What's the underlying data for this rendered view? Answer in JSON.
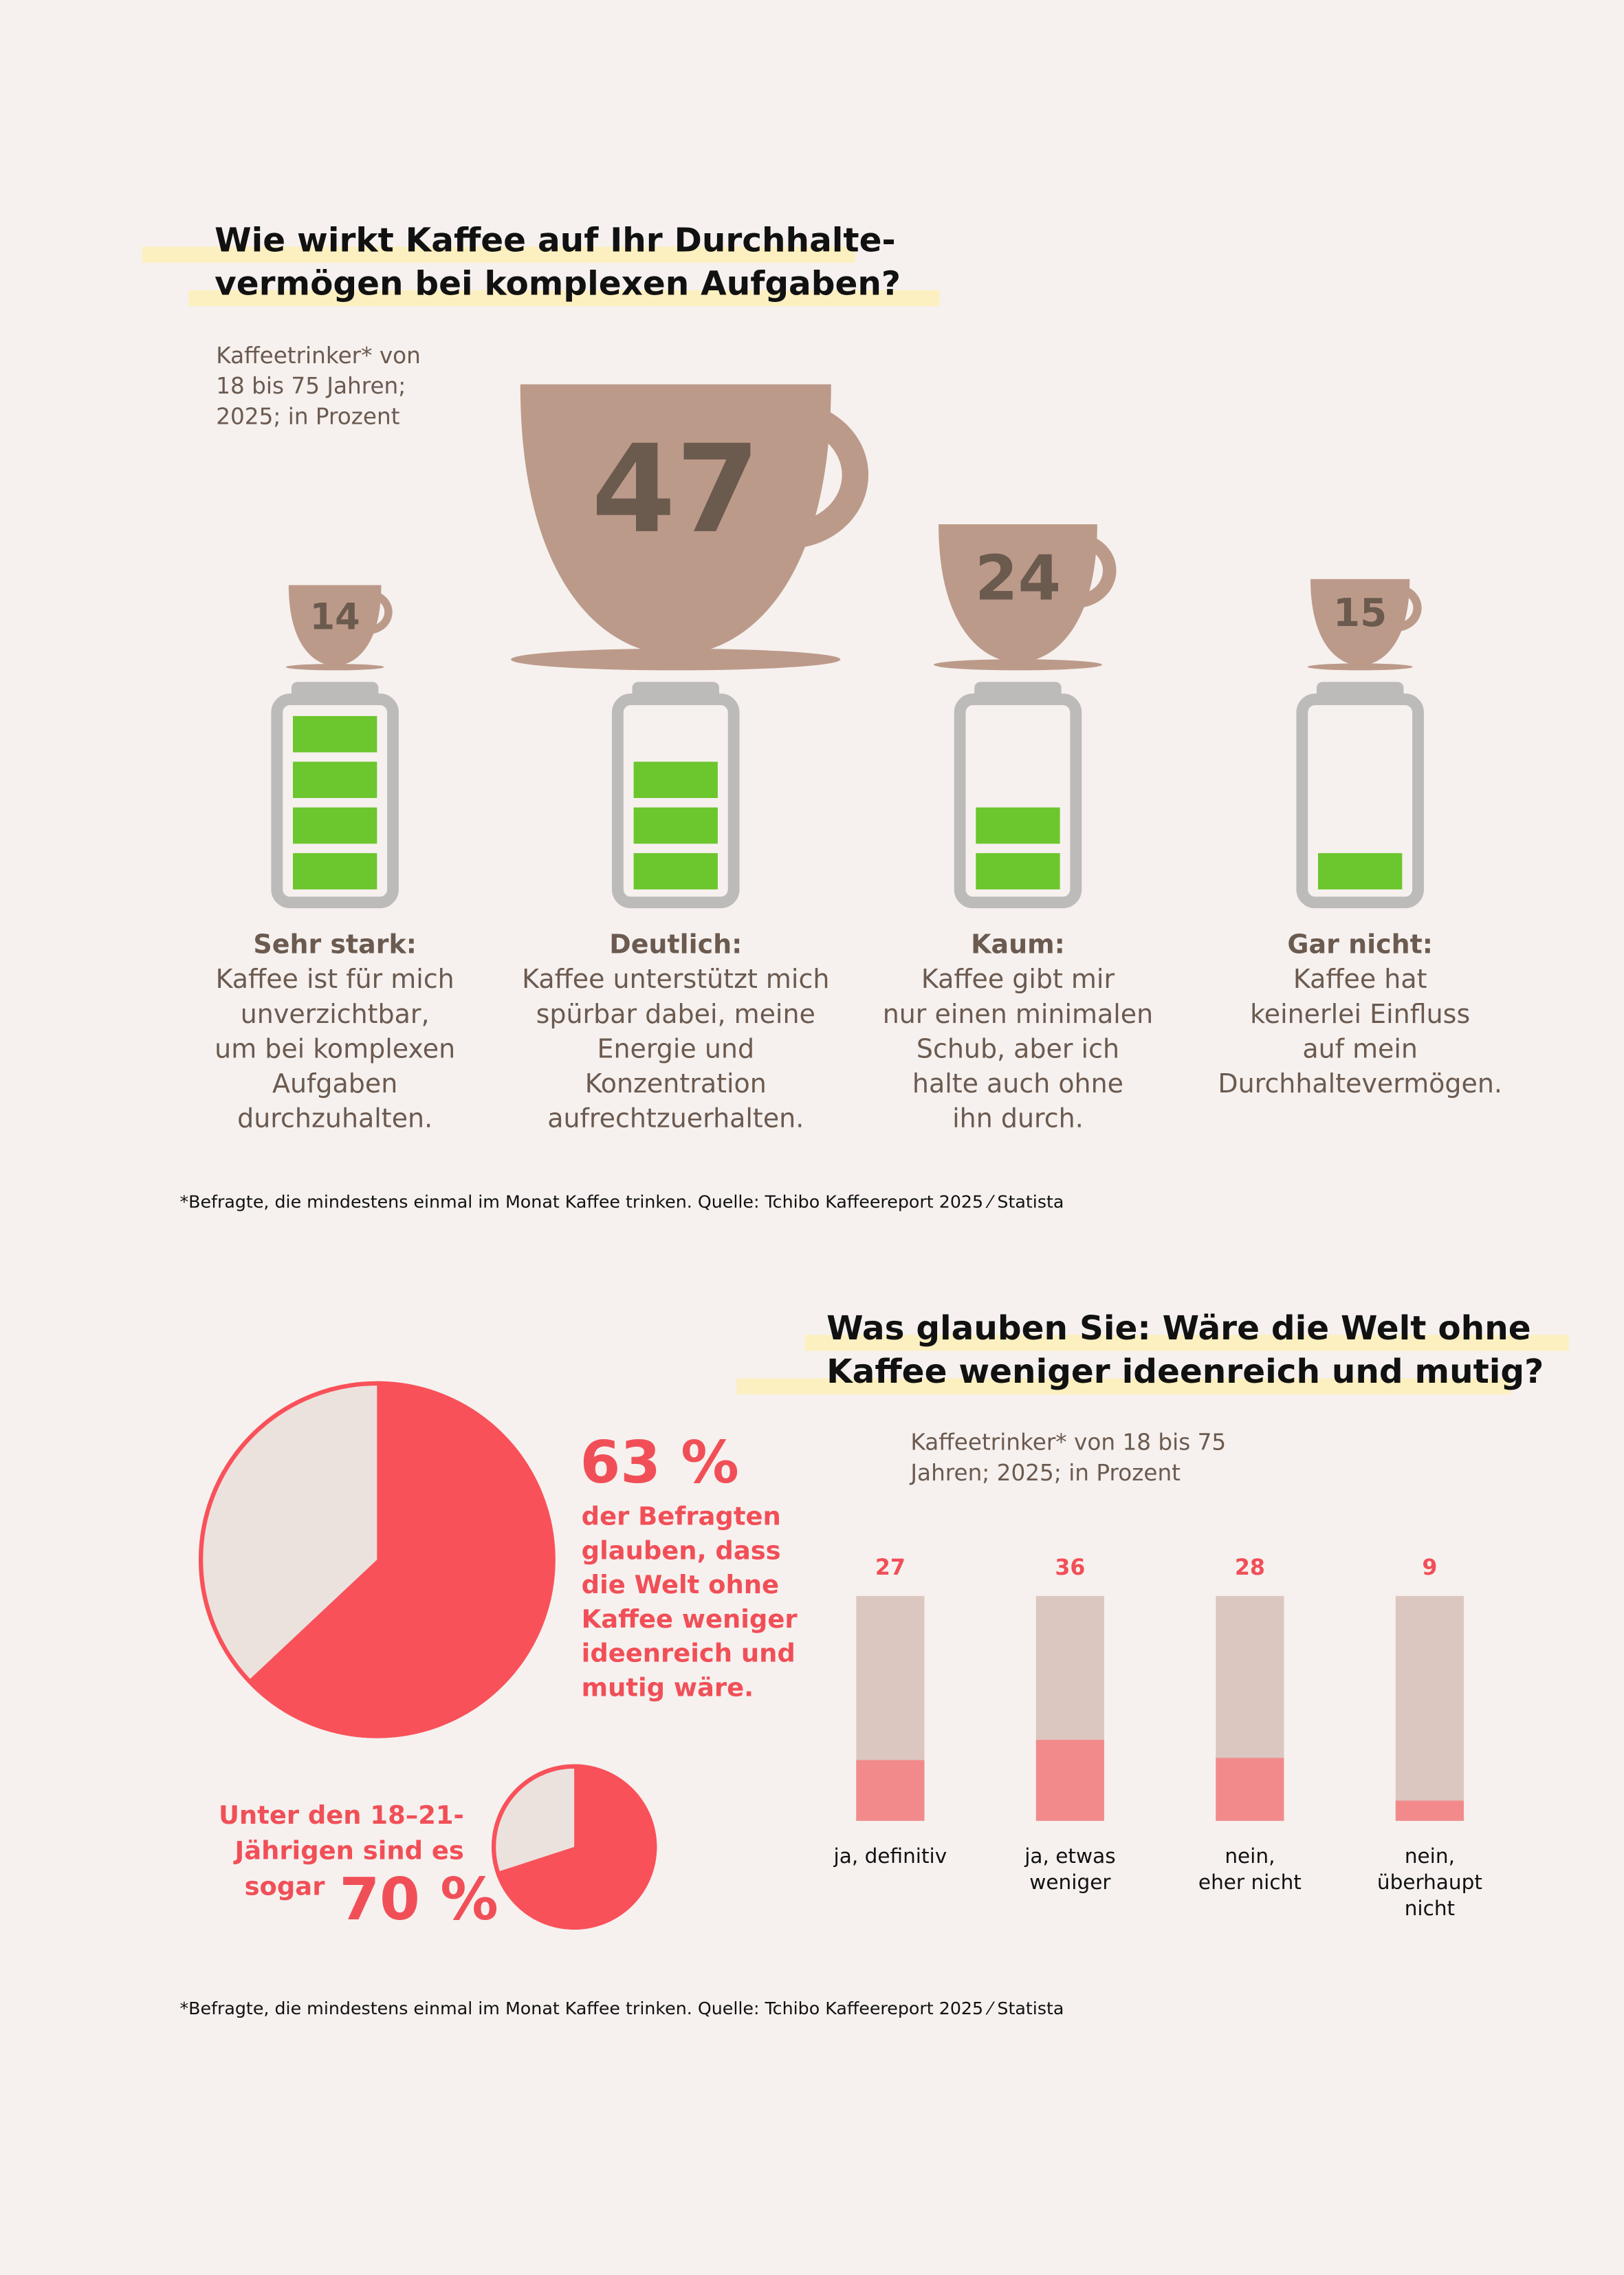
{
  "chart_data": [
    {
      "type": "cup",
      "title_lines": [
        "Wie wirkt Kaffee auf Ihr Durchhalte-",
        "vermögen bei komplexen Aufgaben?"
      ],
      "subtitle_lines": [
        "Kaffeetrinker* von",
        "18 bis 75 Jahren;",
        "2025; in Prozent"
      ],
      "categories": [
        "Sehr stark:",
        "Deutlich:",
        "Kaum:",
        "Gar nicht:"
      ],
      "descriptions": [
        [
          "Kaffee ist für mich",
          "unverzichtbar,",
          "um bei komplexen",
          "Aufgaben",
          "durchzuhalten."
        ],
        [
          "Kaffee unterstützt mich",
          "spürbar dabei, meine",
          "Energie und",
          "Konzentration",
          "aufrechtzuerhalten."
        ],
        [
          "Kaffee gibt mir",
          "nur einen minimalen",
          "Schub, aber ich",
          "halte auch ohne",
          "ihn durch."
        ],
        [
          "Kaffee hat",
          "keinerlei Einfluss",
          "auf mein",
          "Durchhaltevermögen."
        ]
      ],
      "values": [
        14,
        47,
        24,
        15
      ],
      "levels": [
        4,
        3,
        2,
        1
      ],
      "color": "#bc9a8a",
      "battery_color": "#6cc62d",
      "note": "*Befragte, die mindestens einmal im Monat Kaffee trinken. Quelle: Tchibo Kaffeereport 2025 ⁄ Statista"
    },
    {
      "type": "pie",
      "values": [
        63
      ],
      "value_labels": [
        "63 %"
      ],
      "text_lines": [
        "der Befragten",
        "glauben, dass",
        "die Welt ohne",
        "Kaffee weniger",
        "ideenreich und",
        "mutig wäre."
      ],
      "color": "#f9515a"
    },
    {
      "type": "pie",
      "values": [
        70
      ],
      "value_labels": [
        "70 %"
      ],
      "text_lines": [
        "Unter den 18–21-",
        "Jährigen sind es",
        "sogar"
      ],
      "color": "#f9515a"
    },
    {
      "type": "bar",
      "title_lines": [
        "Was glauben Sie: Wäre die Welt ohne",
        "Kaffee weniger ideenreich und mutig?"
      ],
      "subtitle_lines": [
        "Kaffeetrinker* von 18 bis 75",
        "Jahren; 2025; in Prozent"
      ],
      "categories": [
        [
          "ja, definitiv"
        ],
        [
          "ja, etwas",
          "weniger"
        ],
        [
          "nein,",
          "eher nicht"
        ],
        [
          "nein,",
          "überhaupt",
          "nicht"
        ]
      ],
      "values": [
        27,
        36,
        28,
        9
      ],
      "ylim": [
        0,
        100
      ],
      "color": "#f28a8c",
      "note": "*Befragte, die mindestens einmal im Monat Kaffee trinken. Quelle: Tchibo Kaffeereport 2025 ⁄ Statista"
    }
  ]
}
